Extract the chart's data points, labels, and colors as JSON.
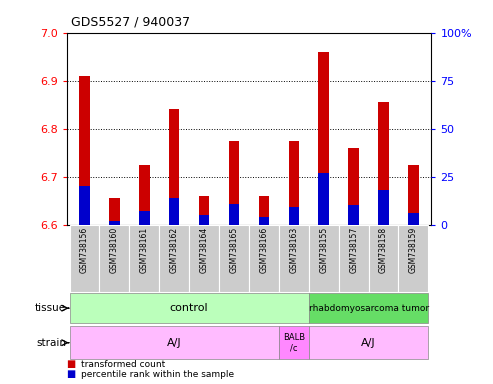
{
  "title": "GDS5527 / 940037",
  "samples": [
    "GSM738156",
    "GSM738160",
    "GSM738161",
    "GSM738162",
    "GSM738164",
    "GSM738165",
    "GSM738166",
    "GSM738163",
    "GSM738155",
    "GSM738157",
    "GSM738158",
    "GSM738159"
  ],
  "red_values": [
    6.91,
    6.655,
    6.725,
    6.84,
    6.66,
    6.775,
    6.66,
    6.775,
    6.96,
    6.76,
    6.855,
    6.725
  ],
  "blue_percentiles": [
    20,
    2,
    7,
    14,
    5,
    11,
    4,
    9,
    27,
    10,
    18,
    6
  ],
  "ylim_left": [
    6.6,
    7.0
  ],
  "ylim_right": [
    0,
    100
  ],
  "yticks_left": [
    6.6,
    6.7,
    6.8,
    6.9,
    7.0
  ],
  "yticks_right": [
    0,
    25,
    50,
    75,
    100
  ],
  "base_value": 6.6,
  "tissue_control_n": 8,
  "tissue_control_label": "control",
  "tissue_tumor_label": "rhabdomyosarcoma tumor",
  "strain_aj1_n": 7,
  "strain_balb_n": 1,
  "strain_aj2_n": 4,
  "strain_aj1_label": "A/J",
  "strain_balb_label": "BALB\n/c",
  "strain_aj2_label": "A/J",
  "tissue_control_color": "#bbffbb",
  "tissue_tumor_color": "#66dd66",
  "strain_color": "#ffbbff",
  "strain_balb_color": "#ff88ff",
  "bar_color_red": "#cc0000",
  "bar_color_blue": "#0000cc",
  "sample_box_color": "#cccccc",
  "legend_red": "transformed count",
  "legend_blue": "percentile rank within the sample"
}
